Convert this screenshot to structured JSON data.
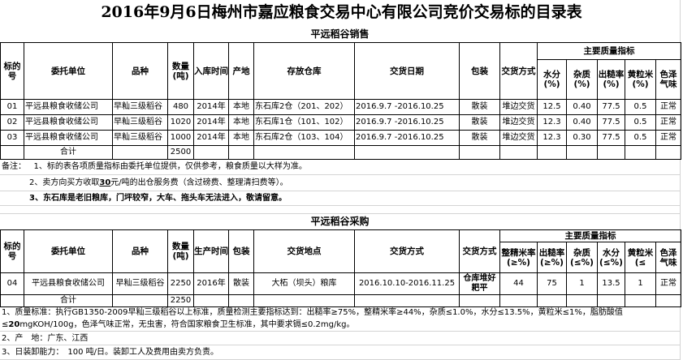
{
  "title": "2016年9月6日梅州市嘉应粮食交易中心有限公司竞价交易标的目录表",
  "sales": {
    "section_title": "平远稻谷销售",
    "headers": [
      "标的号",
      "委托单位",
      "品种",
      "数量(吨)",
      "入库时间",
      "产地",
      "存放仓库",
      "交货日期",
      "包装",
      "交货方式"
    ],
    "quality_header": "主要质量指标",
    "quality_cols": [
      "水分(%)",
      "杂质(%)",
      "出糙率(%)",
      "黄粒米(%)",
      "色泽气味"
    ],
    "rows": [
      [
        "01",
        "平远县粮食收储公司",
        "早籼三级稻谷",
        "480",
        "2014年",
        "本地",
        "东石库2仓（201、202）",
        "2016.9.7 -2016.10.25",
        "散装",
        "堆边交货",
        "12.5",
        "0.40",
        "77.5",
        "0.5",
        "正常"
      ],
      [
        "02",
        "平远县粮食收储公司",
        "早籼三级稻谷",
        "1020",
        "2014年",
        "本地",
        "东石库1仓（101、102）",
        "2016.9.7 -2016.10.25",
        "散装",
        "堆边交货",
        "12.3",
        "0.40",
        "77.5",
        "0.5",
        "正常"
      ],
      [
        "03",
        "平远县粮食收储公司",
        "早籼三级稻谷",
        "1000",
        "2014年",
        "本地",
        "东石库2仓（103、104）",
        "2016.9.7 -2016.10.25",
        "散装",
        "堆边交货",
        "12.3",
        "0.30",
        "77.5",
        "0.5",
        "正常"
      ]
    ],
    "total_label": "合计",
    "total": "2500",
    "notes_label": "备注：",
    "notes": [
      "1、标的表各项质量指标由委托单位提供，仅供参考，粮食质量以大样为准。",
      "2、卖方向买方收取",
      "30",
      "元/吨的出仓服务费（含过磅费、整理清扫费等）。",
      "3、东石库是老旧粮库，门坪较窄，大车、拖头车无法进入，敬请留意。"
    ]
  },
  "purchase": {
    "section_title": "平远稻谷采购",
    "headers": [
      "标的号",
      "委托单位",
      "品种",
      "数量(吨)",
      "生产时间",
      "包装",
      "交货地点",
      "交货方式",
      "交货方式"
    ],
    "quality_header": "主要质量指标",
    "quality_cols": [
      "整精米率(≥%)",
      "出糙率(≥%)",
      "杂质(≤%)",
      "水分(≤%)",
      "黄粒米(≤",
      "色泽气味"
    ],
    "rows": [
      [
        "04",
        "平远县粮食收储公司",
        "早籼三级稻谷",
        "2250",
        "2016年",
        "散装",
        "大柘（坝头）粮库",
        "2016.10.10-2016.11.25",
        "仓库堆好耙平",
        "44",
        "75",
        "1",
        "13.5",
        "1",
        "正常"
      ]
    ],
    "total_label": "合计",
    "total": "2250",
    "notes": [
      "1、质量标准：执行GB1350-2009早籼三级稻谷以上标准，质量检测主要指标达到：出糙率≥75%，整精米率≥44%，杂质≤1.0%，水分≤13.5%，黄粒米≤1%，脂肪酸值≤",
      "20",
      "mgKOH/100g，色泽气味正常，无虫害，符合国家粮食卫生标准，其中要求镉≤0.2mg/kg。",
      "2、产　地：广东、江西",
      "3、日装卸能力：　100 吨/日。装卸工人及费用由卖方负责。"
    ]
  }
}
